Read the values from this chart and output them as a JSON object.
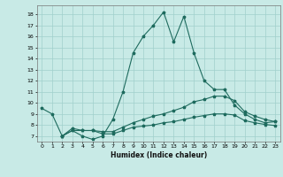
{
  "xlabel": "Humidex (Indice chaleur)",
  "bg_color": "#c8eae6",
  "line_color": "#1e6b5e",
  "grid_color": "#a0d0cc",
  "xlim": [
    -0.5,
    23.5
  ],
  "ylim": [
    6.5,
    18.8
  ],
  "xticks": [
    0,
    1,
    2,
    3,
    4,
    5,
    6,
    7,
    8,
    9,
    10,
    11,
    12,
    13,
    14,
    15,
    16,
    17,
    18,
    19,
    20,
    21,
    22,
    23
  ],
  "yticks": [
    7,
    8,
    9,
    10,
    11,
    12,
    13,
    14,
    15,
    16,
    17,
    18
  ],
  "line1_x": [
    0,
    1,
    2,
    3,
    4,
    5,
    6,
    7,
    8,
    9,
    10,
    11,
    12,
    13,
    14,
    15,
    16,
    17,
    18,
    19,
    20,
    21,
    22,
    23
  ],
  "line1_y": [
    9.5,
    9.0,
    7.0,
    7.5,
    7.0,
    6.7,
    7.0,
    8.5,
    11.0,
    14.5,
    16.0,
    17.0,
    18.2,
    15.5,
    17.8,
    14.5,
    12.0,
    11.2,
    11.2,
    9.8,
    9.0,
    8.5,
    8.2,
    8.3
  ],
  "line2_x": [
    2,
    3,
    4,
    5,
    6,
    7,
    8,
    9,
    10,
    11,
    12,
    13,
    14,
    15,
    16,
    17,
    18,
    19,
    20,
    21,
    22,
    23
  ],
  "line2_y": [
    7.0,
    7.5,
    7.5,
    7.5,
    7.4,
    7.4,
    7.8,
    8.2,
    8.5,
    8.8,
    9.0,
    9.3,
    9.6,
    10.1,
    10.3,
    10.6,
    10.6,
    10.2,
    9.2,
    8.8,
    8.5,
    8.3
  ],
  "line3_x": [
    2,
    3,
    4,
    5,
    6,
    7,
    8,
    9,
    10,
    11,
    12,
    13,
    14,
    15,
    16,
    17,
    18,
    19,
    20,
    21,
    22,
    23
  ],
  "line3_y": [
    7.0,
    7.7,
    7.5,
    7.5,
    7.2,
    7.2,
    7.5,
    7.8,
    7.9,
    8.0,
    8.2,
    8.3,
    8.5,
    8.7,
    8.85,
    9.0,
    9.0,
    8.9,
    8.4,
    8.2,
    8.05,
    7.95
  ]
}
